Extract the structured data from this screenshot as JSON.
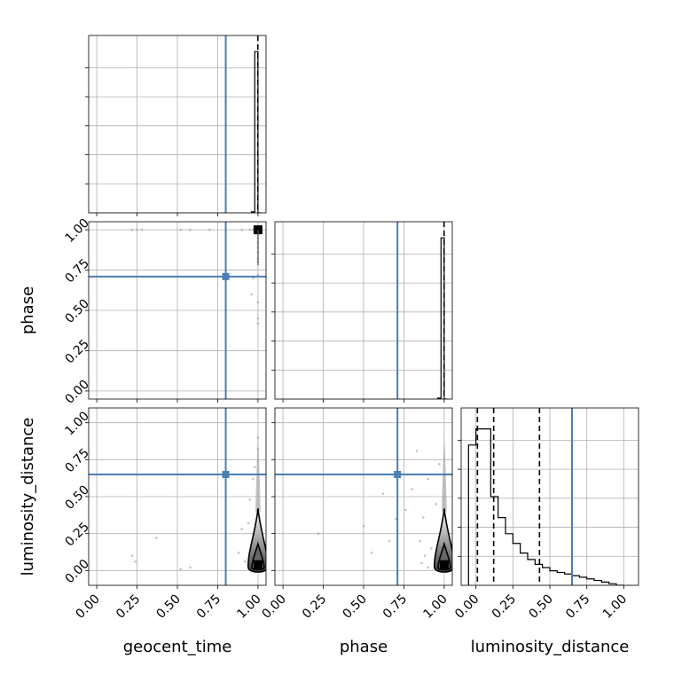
{
  "figure": {
    "type": "corner_plot",
    "parameters": [
      "geocent_time",
      "phase",
      "luminosity_distance"
    ],
    "truth_color": "#4a7fb5",
    "quantile_color": "#000000",
    "grid": true
  },
  "chart_data": [
    {
      "panel": "hist-geocent_time",
      "type": "histogram",
      "xlim": [
        -0.05,
        1.05
      ],
      "bin_edges": [
        0.96,
        0.98,
        1.0,
        1.02
      ],
      "values": [
        0.006,
        1.0,
        0.0
      ],
      "truth": 0.8,
      "quantiles": [
        0.999
      ],
      "show_tick_labels": false
    },
    {
      "panel": "scatter-geocent_time-phase",
      "type": "scatter",
      "x_param": "geocent_time",
      "y_param": "phase",
      "xlim": [
        -0.05,
        1.05
      ],
      "ylim": [
        -0.05,
        1.05
      ],
      "points": [
        [
          0.22,
          1.0
        ],
        [
          0.25,
          1.0
        ],
        [
          0.28,
          1.0
        ],
        [
          0.52,
          1.0
        ],
        [
          0.58,
          1.0
        ],
        [
          0.7,
          1.0
        ],
        [
          0.9,
          1.0
        ],
        [
          0.95,
          1.0
        ],
        [
          0.97,
          1.0
        ],
        [
          1.0,
          0.97
        ],
        [
          1.0,
          0.95
        ],
        [
          1.0,
          0.92
        ],
        [
          1.0,
          0.89
        ],
        [
          1.0,
          0.86
        ],
        [
          1.0,
          0.82
        ],
        [
          1.0,
          0.8
        ],
        [
          1.0,
          0.72
        ],
        [
          0.97,
          0.7
        ],
        [
          0.96,
          0.6
        ],
        [
          1.0,
          0.55
        ],
        [
          1.0,
          0.45
        ],
        [
          1.0,
          0.42
        ]
      ],
      "peak": [
        1.0,
        1.0
      ],
      "truth": [
        0.8,
        0.71
      ],
      "y_ticks": [
        "0.00",
        "0.25",
        "0.50",
        "0.75",
        "1.00"
      ],
      "ylabel": "phase"
    },
    {
      "panel": "hist-phase",
      "type": "histogram",
      "xlim": [
        -0.05,
        1.05
      ],
      "bin_edges": [
        0.96,
        0.98,
        1.0,
        1.02
      ],
      "values": [
        0.006,
        1.0,
        0.0
      ],
      "truth": 0.71,
      "quantiles": [
        0.999
      ],
      "show_tick_labels": false
    },
    {
      "panel": "scatter-geocent_time-luminosity_distance",
      "type": "scatter",
      "x_param": "geocent_time",
      "y_param": "luminosity_distance",
      "xlim": [
        -0.05,
        1.05
      ],
      "ylim": [
        -0.1,
        1.1
      ],
      "points": [
        [
          0.22,
          0.1
        ],
        [
          0.24,
          0.06
        ],
        [
          0.37,
          0.22
        ],
        [
          0.52,
          0.01
        ],
        [
          0.58,
          0.02
        ],
        [
          0.88,
          0.12
        ],
        [
          0.9,
          0.28
        ],
        [
          0.92,
          0.06
        ],
        [
          0.94,
          0.32
        ],
        [
          0.95,
          0.48
        ],
        [
          0.97,
          0.62
        ],
        [
          0.98,
          0.7
        ],
        [
          1.0,
          0.82
        ],
        [
          1.0,
          0.9
        ],
        [
          1.0,
          0.74
        ]
      ],
      "truth": [
        0.8,
        0.65
      ],
      "density_center": 1.0,
      "y_ticks": [
        "0.00",
        "0.25",
        "0.50",
        "0.75",
        "1.00"
      ],
      "x_ticks": [
        "0.00",
        "0.25",
        "0.50",
        "0.75",
        "1.00"
      ],
      "xlabel": "geocent_time",
      "ylabel": "luminosity_distance"
    },
    {
      "panel": "scatter-phase-luminosity_distance",
      "type": "scatter",
      "x_param": "phase",
      "y_param": "luminosity_distance",
      "xlim": [
        -0.05,
        1.05
      ],
      "ylim": [
        -0.1,
        1.1
      ],
      "points": [
        [
          0.22,
          0.25
        ],
        [
          0.5,
          0.3
        ],
        [
          0.55,
          0.12
        ],
        [
          0.62,
          0.52
        ],
        [
          0.66,
          0.2
        ],
        [
          0.7,
          0.35
        ],
        [
          0.76,
          0.41
        ],
        [
          0.8,
          0.55
        ],
        [
          0.83,
          0.81
        ],
        [
          0.85,
          0.2
        ],
        [
          0.87,
          0.36
        ],
        [
          0.88,
          0.1
        ],
        [
          0.9,
          0.62
        ],
        [
          0.92,
          0.15
        ],
        [
          0.95,
          0.45
        ],
        [
          0.97,
          0.72
        ],
        [
          0.9,
          0.02
        ],
        [
          0.86,
          0.05
        ]
      ],
      "truth": [
        0.71,
        0.65
      ],
      "density_center": 1.0,
      "x_ticks": [
        "0.00",
        "0.25",
        "0.50",
        "0.75",
        "1.00"
      ],
      "xlabel": "phase"
    },
    {
      "panel": "hist-luminosity_distance",
      "type": "histogram",
      "xlim": [
        -0.1,
        1.1
      ],
      "bin_edges": [
        -0.05,
        0.0,
        0.05,
        0.1,
        0.15,
        0.2,
        0.25,
        0.3,
        0.35,
        0.4,
        0.45,
        0.5,
        0.55,
        0.6,
        0.65,
        0.7,
        0.75,
        0.8,
        0.85,
        0.9,
        0.95,
        1.0
      ],
      "values": [
        0.87,
        0.97,
        0.97,
        0.55,
        0.42,
        0.32,
        0.26,
        0.2,
        0.16,
        0.13,
        0.11,
        0.09,
        0.08,
        0.07,
        0.06,
        0.05,
        0.04,
        0.03,
        0.02,
        0.01,
        0.0
      ],
      "truth": 0.65,
      "quantiles": [
        0.01,
        0.12,
        0.43
      ],
      "x_ticks": [
        "0.00",
        "0.25",
        "0.50",
        "0.75",
        "1.00"
      ],
      "xlabel": "luminosity_distance"
    }
  ]
}
